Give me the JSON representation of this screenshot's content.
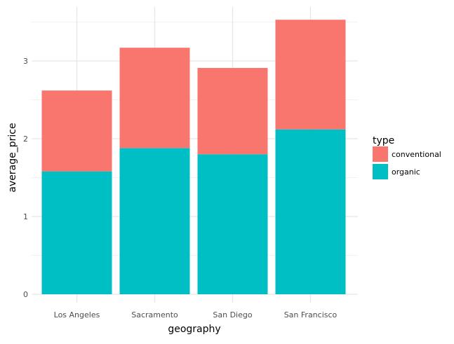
{
  "chart_data": {
    "type": "bar",
    "stacked": true,
    "xlabel": "geography",
    "ylabel": "average_price",
    "categories": [
      "Los Angeles",
      "Sacramento",
      "San Diego",
      "San Francisco"
    ],
    "series": [
      {
        "name": "organic",
        "values": [
          1.58,
          1.88,
          1.8,
          2.12
        ],
        "color": "#00BFC4"
      },
      {
        "name": "conventional",
        "values": [
          1.04,
          1.29,
          1.11,
          1.41
        ],
        "color": "#F8766D"
      }
    ],
    "ylim": [
      0,
      3.5
    ],
    "yticks": [
      0,
      1,
      2,
      3
    ],
    "grid": true,
    "legend": {
      "title": "type",
      "position": "right",
      "entries": [
        "conventional",
        "organic"
      ]
    }
  }
}
